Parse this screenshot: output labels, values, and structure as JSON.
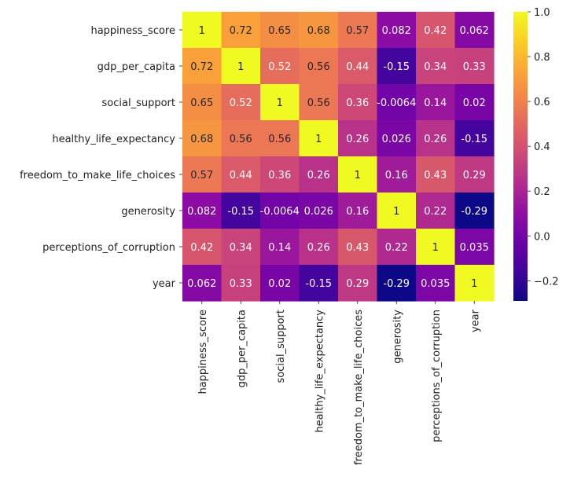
{
  "chart_data": {
    "type": "heatmap",
    "title": "",
    "xlabel": "",
    "ylabel": "",
    "colormap": "plasma",
    "row_labels": [
      "happiness_score",
      "gdp_per_capita",
      "social_support",
      "healthy_life_expectancy",
      "freedom_to_make_life_choices",
      "generosity",
      "perceptions_of_corruption",
      "year"
    ],
    "col_labels": [
      "happiness_score",
      "gdp_per_capita",
      "social_support",
      "healthy_life_expectancy",
      "freedom_to_make_life_choices",
      "generosity",
      "perceptions_of_corruption",
      "year"
    ],
    "values": [
      [
        1,
        0.72,
        0.65,
        0.68,
        0.57,
        0.082,
        0.42,
        0.062
      ],
      [
        0.72,
        1,
        0.52,
        0.56,
        0.44,
        -0.15,
        0.34,
        0.33
      ],
      [
        0.65,
        0.52,
        1,
        0.56,
        0.36,
        -0.0064,
        0.14,
        0.02
      ],
      [
        0.68,
        0.56,
        0.56,
        1,
        0.26,
        0.026,
        0.26,
        -0.15
      ],
      [
        0.57,
        0.44,
        0.36,
        0.26,
        1,
        0.16,
        0.43,
        0.29
      ],
      [
        0.082,
        -0.15,
        -0.0064,
        0.026,
        0.16,
        1,
        0.22,
        -0.29
      ],
      [
        0.42,
        0.34,
        0.14,
        0.26,
        0.43,
        0.22,
        1,
        0.035
      ],
      [
        0.062,
        0.33,
        0.02,
        -0.15,
        0.29,
        -0.29,
        0.035,
        1
      ]
    ],
    "cell_labels": [
      [
        "1",
        "0.72",
        "0.65",
        "0.68",
        "0.57",
        "0.082",
        "0.42",
        "0.062"
      ],
      [
        "0.72",
        "1",
        "0.52",
        "0.56",
        "0.44",
        "-0.15",
        "0.34",
        "0.33"
      ],
      [
        "0.65",
        "0.52",
        "1",
        "0.56",
        "0.36",
        "-0.0064",
        "0.14",
        "0.02"
      ],
      [
        "0.68",
        "0.56",
        "0.56",
        "1",
        "0.26",
        "0.026",
        "0.26",
        "-0.15"
      ],
      [
        "0.57",
        "0.44",
        "0.36",
        "0.26",
        "1",
        "0.16",
        "0.43",
        "0.29"
      ],
      [
        "0.082",
        "-0.15",
        "-0.0064",
        "0.026",
        "0.16",
        "1",
        "0.22",
        "-0.29"
      ],
      [
        "0.42",
        "0.34",
        "0.14",
        "0.26",
        "0.43",
        "0.22",
        "1",
        "0.035"
      ],
      [
        "0.062",
        "0.33",
        "0.02",
        "-0.15",
        "0.29",
        "-0.29",
        "0.035",
        "1"
      ]
    ],
    "vmin": -0.29,
    "vmax": 1.0,
    "colorbar": {
      "ticks": [
        -0.2,
        0.0,
        0.2,
        0.4,
        0.6,
        0.8,
        1.0
      ],
      "tick_labels": [
        "−0.2",
        "0.0",
        "0.2",
        "0.4",
        "0.6",
        "0.8",
        "1.0"
      ]
    }
  }
}
